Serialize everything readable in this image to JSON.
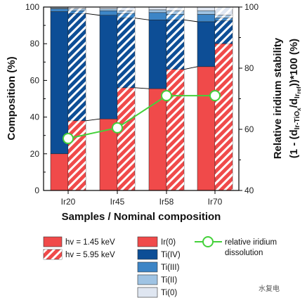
{
  "chart_data": {
    "type": "bar",
    "categories": [
      "Ir20",
      "Ir45",
      "Ir58",
      "Ir70"
    ],
    "xlabel": "Samples / Nominal composition",
    "ylabel_left": "Composition (%)",
    "ylabel_right_line1": "Relative iridium stability",
    "ylabel_right_line2_a": "(1 - (d",
    "ylabel_right_line2_sub1": "Ir-TiO",
    "ylabel_right_line2_subx": "x",
    "ylabel_right_line2_b": "/d",
    "ylabel_right_line2_sub2": "Ir",
    "ylabel_right_line2_subref": "ref",
    "ylabel_right_line2_c": "))*100 (%)",
    "ylim_left": [
      0,
      100
    ],
    "ylim_right": [
      40,
      100
    ],
    "yticks_left": [
      "0",
      "20",
      "40",
      "60",
      "80",
      "100"
    ],
    "yticks_right": [
      "40",
      "60",
      "80",
      "100"
    ],
    "bar_groups": [
      {
        "name": "hv = 1.45 keV",
        "hatched": false
      },
      {
        "name": "hv = 5.95 keV",
        "hatched": true
      }
    ],
    "components": [
      {
        "name": "Ir(0)",
        "color": "#f04a4a"
      },
      {
        "name": "Ti(IV)",
        "color": "#0d4e96"
      },
      {
        "name": "Ti(III)",
        "color": "#3d85c6"
      },
      {
        "name": "Ti(II)",
        "color": "#9fc3e3"
      },
      {
        "name": "Ti(0)",
        "color": "#dfe6f1"
      }
    ],
    "stacks": {
      "hv_1_45": [
        [
          20,
          77.5,
          1.5,
          0.5,
          0.5
        ],
        [
          39,
          56.5,
          2.5,
          1,
          1
        ],
        [
          55.5,
          37.5,
          4,
          1.5,
          1.5
        ],
        [
          67.5,
          24.5,
          4,
          2,
          2
        ]
      ],
      "hv_5_95": [
        [
          38,
          58.5,
          1.5,
          1,
          1
        ],
        [
          56,
          38,
          2.5,
          1.5,
          2
        ],
        [
          66,
          27,
          3,
          2,
          2
        ],
        [
          80,
          12.5,
          1.5,
          1.5,
          4.5
        ]
      ]
    },
    "series": [
      {
        "name": "relative iridium dissolution",
        "axis": "right",
        "values": [
          57,
          60.5,
          71,
          71
        ],
        "color": "#44d13a"
      }
    ],
    "legend_placement": "bottom"
  },
  "legend": {
    "hv_low": "hv = 1.45 keV",
    "hv_high": "hv = 5.95 keV",
    "ir0": "Ir(0)",
    "ti4": "Ti(IV)",
    "ti3": "Ti(III)",
    "ti2": "Ti(II)",
    "ti0": "Ti(0)",
    "line_label_1": "relative iridium",
    "line_label_2": "dissolution"
  },
  "watermark": "水复电"
}
